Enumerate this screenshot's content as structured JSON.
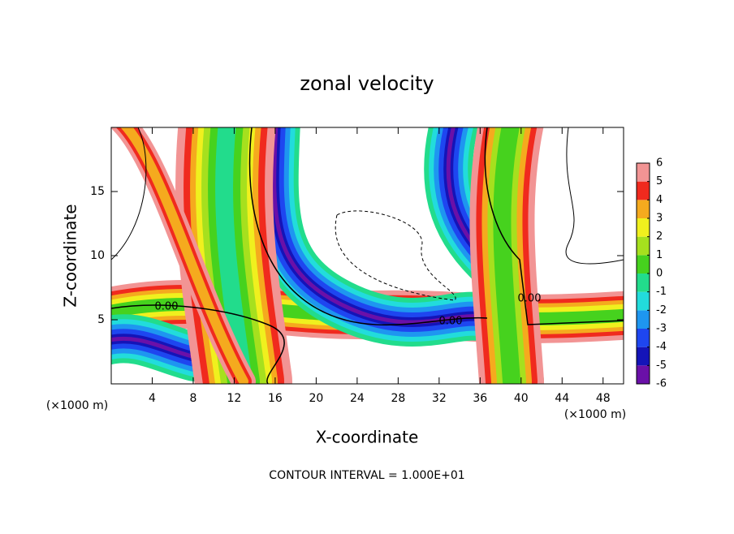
{
  "chart_data": {
    "type": "contour",
    "title": "zonal velocity",
    "xlabel": "X-coordinate",
    "ylabel": "Z-coordinate",
    "xunit": "(×1000 m)",
    "yunit": "(×1000 m)",
    "footnote": "CONTOUR INTERVAL = 1.000E+01",
    "contour_labels": [
      "0.00",
      "0.00",
      "0.00"
    ],
    "xlim": [
      0,
      50
    ],
    "xticks": [
      4,
      8,
      12,
      16,
      20,
      24,
      28,
      32,
      36,
      40,
      44,
      48
    ],
    "ylim": [
      0,
      20
    ],
    "yticks": [
      5,
      10,
      15
    ],
    "colorbar_ticks": [
      -6,
      -5,
      -4,
      -3,
      -2,
      -1,
      0,
      1,
      2,
      3,
      4,
      5,
      6
    ],
    "colorbar_colors": [
      "#6a10a8",
      "#1414b8",
      "#1e46f0",
      "#1e96f0",
      "#22dcdc",
      "#22dc8c",
      "#46d21e",
      "#a6e01e",
      "#f0f01e",
      "#f5aa1e",
      "#f02a1e",
      "#f29494"
    ]
  }
}
